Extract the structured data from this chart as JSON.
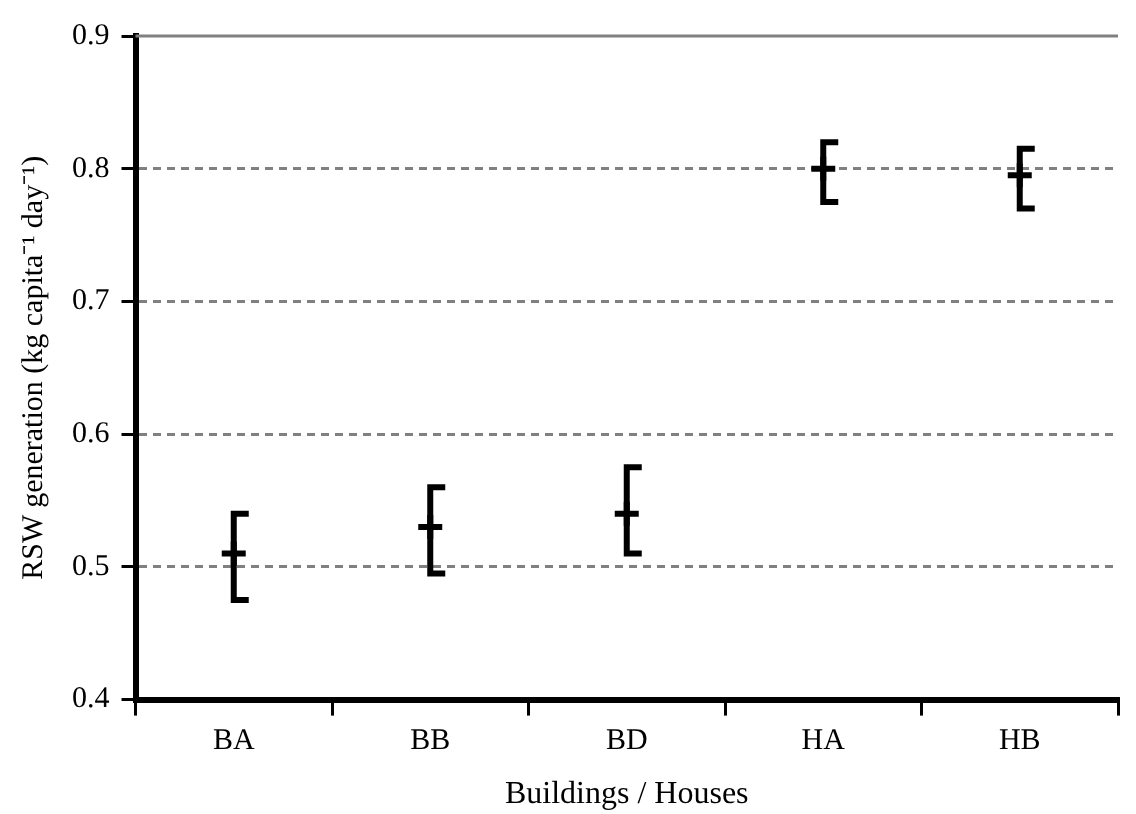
{
  "chart_data": {
    "type": "scatter",
    "xlabel": "Buildings / Houses",
    "ylabel": "RSW generation (kg capita⁻¹ day⁻¹)",
    "categories": [
      "BA",
      "BB",
      "BD",
      "HA",
      "HB"
    ],
    "series": [
      {
        "color": "#000000",
        "values": [
          0.51,
          0.53,
          0.54,
          0.8,
          0.795
        ],
        "errors": [
          [
            0.475,
            0.54
          ],
          [
            0.495,
            0.56
          ],
          [
            0.51,
            0.575
          ],
          [
            0.775,
            0.82
          ],
          [
            0.77,
            0.815
          ]
        ]
      }
    ],
    "ylim": [
      0.4,
      0.9
    ],
    "yticks": [
      0.4,
      0.5,
      0.6,
      0.7,
      0.8,
      0.9
    ],
    "grid": "y",
    "marker": "cross"
  }
}
